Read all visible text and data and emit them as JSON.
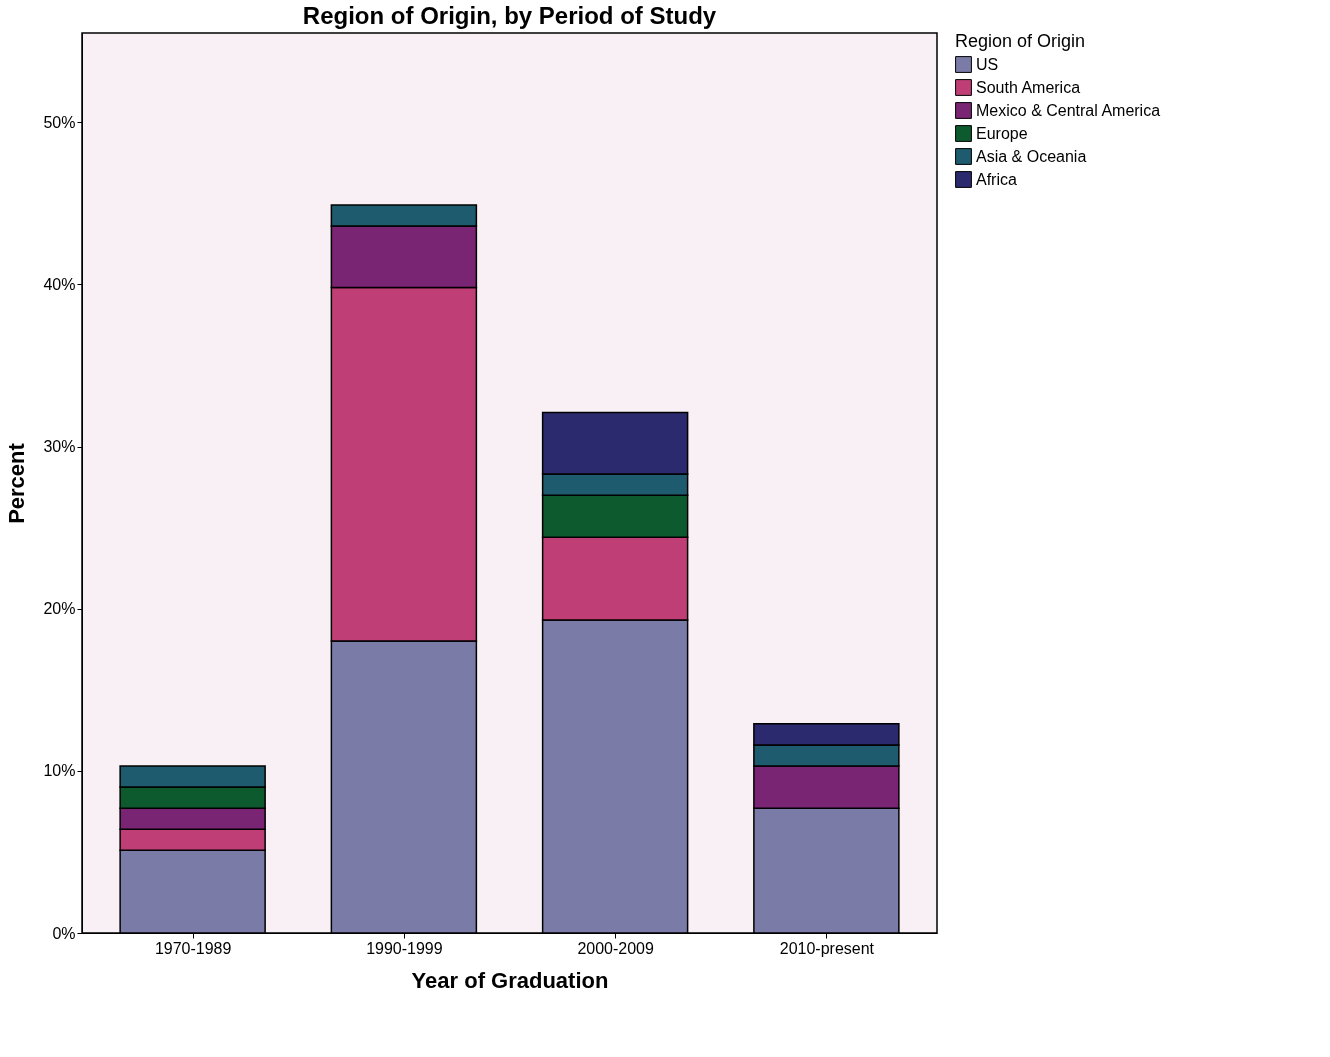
{
  "chart_data": {
    "type": "bar",
    "stacked": true,
    "title": "Region of Origin, by Period of Study",
    "xlabel": "Year of Graduation",
    "ylabel": "Percent",
    "legend_title": "Region of Origin",
    "legend": "top right",
    "grid": false,
    "categories": [
      "1970-1989",
      "1990-1999",
      "2000-2009",
      "2010-present"
    ],
    "ylim": [
      0,
      55.5
    ],
    "yticks": [
      {
        "value": 0,
        "label": "0%"
      },
      {
        "value": 10,
        "label": "10%"
      },
      {
        "value": 20,
        "label": "20%"
      },
      {
        "value": 30,
        "label": "30%"
      },
      {
        "value": 40,
        "label": "40%"
      },
      {
        "value": 50,
        "label": "50%"
      }
    ],
    "series": [
      {
        "name": "US",
        "color": "#7b7ba8",
        "values": [
          5.1,
          18.0,
          19.3,
          7.7
        ]
      },
      {
        "name": "South America",
        "color": "#bf3e76",
        "values": [
          1.3,
          21.8,
          5.1,
          null
        ]
      },
      {
        "name": "Mexico & Central America",
        "color": "#7a2474",
        "values": [
          1.3,
          3.8,
          null,
          2.6
        ]
      },
      {
        "name": "Europe",
        "color": "#0d5a2e",
        "values": [
          1.3,
          null,
          2.6,
          null
        ]
      },
      {
        "name": "Asia & Oceania",
        "color": "#1e5b6e",
        "values": [
          1.3,
          1.3,
          1.3,
          1.3
        ]
      },
      {
        "name": "Africa",
        "color": "#2b2a6f",
        "values": [
          null,
          null,
          3.8,
          1.3
        ]
      }
    ]
  }
}
